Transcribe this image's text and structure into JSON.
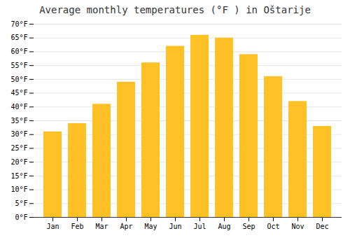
{
  "chart_data": {
    "type": "bar",
    "title": "Average monthly temperatures (°F ) in Oštarije",
    "categories": [
      "Jan",
      "Feb",
      "Mar",
      "Apr",
      "May",
      "Jun",
      "Jul",
      "Aug",
      "Sep",
      "Oct",
      "Nov",
      "Dec"
    ],
    "values": [
      31,
      34,
      41,
      49,
      56,
      62,
      66,
      65,
      59,
      51,
      42,
      33
    ],
    "color": "#FFC125",
    "ylim": [
      0,
      70
    ],
    "yticks": [
      {
        "value": 0,
        "label": "0°F"
      },
      {
        "value": 5,
        "label": "5°F"
      },
      {
        "value": 10,
        "label": "10°F"
      },
      {
        "value": 15,
        "label": "15°F"
      },
      {
        "value": 20,
        "label": "20°F"
      },
      {
        "value": 25,
        "label": "25°F"
      },
      {
        "value": 30,
        "label": "30°F"
      },
      {
        "value": 35,
        "label": "35°F"
      },
      {
        "value": 40,
        "label": "40°F"
      },
      {
        "value": 45,
        "label": "45°F"
      },
      {
        "value": 50,
        "label": "50°F"
      },
      {
        "value": 55,
        "label": "55°F"
      },
      {
        "value": 60,
        "label": "60°F"
      },
      {
        "value": 65,
        "label": "65°F"
      },
      {
        "value": 70,
        "label": "70°F"
      }
    ],
    "grid": true
  }
}
